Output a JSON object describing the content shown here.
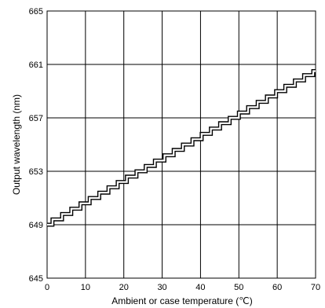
{
  "chart_data": {
    "type": "line",
    "title": "",
    "xlabel": "Ambient or case temperature (℃)",
    "ylabel": "Output wavelength  (nm)",
    "xlim": [
      0,
      70
    ],
    "ylim": [
      645,
      665
    ],
    "xticks": [
      "0",
      "10",
      "20",
      "30",
      "40",
      "50",
      "60",
      "70"
    ],
    "yticks": [
      "645",
      "649",
      "653",
      "657",
      "661",
      "665"
    ],
    "grid": true,
    "legend": "none",
    "step_style": "double-line staircase",
    "series": [
      {
        "x": [
          0,
          1.4,
          1.4,
          3.9,
          3.9,
          6.3,
          6.3,
          8.7,
          8.7,
          11.1,
          11.1,
          13.6,
          13.6,
          16.0,
          16.0,
          18.4,
          18.4,
          20.8,
          20.8,
          23.3,
          23.3,
          25.7,
          25.7,
          28.1,
          28.1,
          30.6,
          30.6,
          33.0,
          33.0,
          35.4,
          35.4,
          37.9,
          37.9,
          40.3,
          40.3,
          42.7,
          42.7,
          45.1,
          45.1,
          47.6,
          47.6,
          50.0,
          50.0,
          52.4,
          52.4,
          54.9,
          54.9,
          57.3,
          57.3,
          59.7,
          59.7,
          62.1,
          62.1,
          64.6,
          64.6,
          67.0,
          67.0,
          69.4,
          69.4,
          70
        ],
        "y": [
          649.0,
          649.0,
          649.4,
          649.4,
          649.8,
          649.8,
          650.2,
          650.2,
          650.6,
          650.6,
          651.0,
          651.0,
          651.4,
          651.4,
          651.8,
          651.8,
          652.2,
          652.2,
          652.6,
          652.6,
          653.0,
          653.0,
          653.4,
          653.4,
          653.8,
          653.8,
          654.2,
          654.2,
          654.6,
          654.6,
          655.0,
          655.0,
          655.4,
          655.4,
          655.8,
          655.8,
          656.2,
          656.2,
          656.6,
          656.6,
          657.0,
          657.0,
          657.4,
          657.4,
          657.8,
          657.8,
          658.2,
          658.2,
          658.6,
          658.6,
          659.0,
          659.0,
          659.4,
          659.4,
          659.8,
          659.8,
          660.2,
          660.2,
          660.5,
          660.5
        ]
      }
    ]
  }
}
